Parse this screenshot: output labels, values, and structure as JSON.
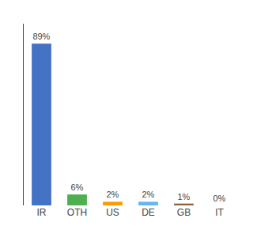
{
  "chart_data": {
    "type": "bar",
    "categories": [
      "IR",
      "OTH",
      "US",
      "DE",
      "GB",
      "IT"
    ],
    "values": [
      89,
      6,
      2,
      2,
      1,
      0
    ],
    "value_labels": [
      "89%",
      "6%",
      "2%",
      "2%",
      "1%",
      "0%"
    ],
    "data_labels": true,
    "colors": [
      "#4472c4",
      "#4caf50",
      "#ff9800",
      "#64b5f6",
      "#8d6040",
      "#9e9e9e"
    ],
    "ylim": [
      0,
      100
    ],
    "yticks": [],
    "tick_labels": "x",
    "grid": false
  }
}
